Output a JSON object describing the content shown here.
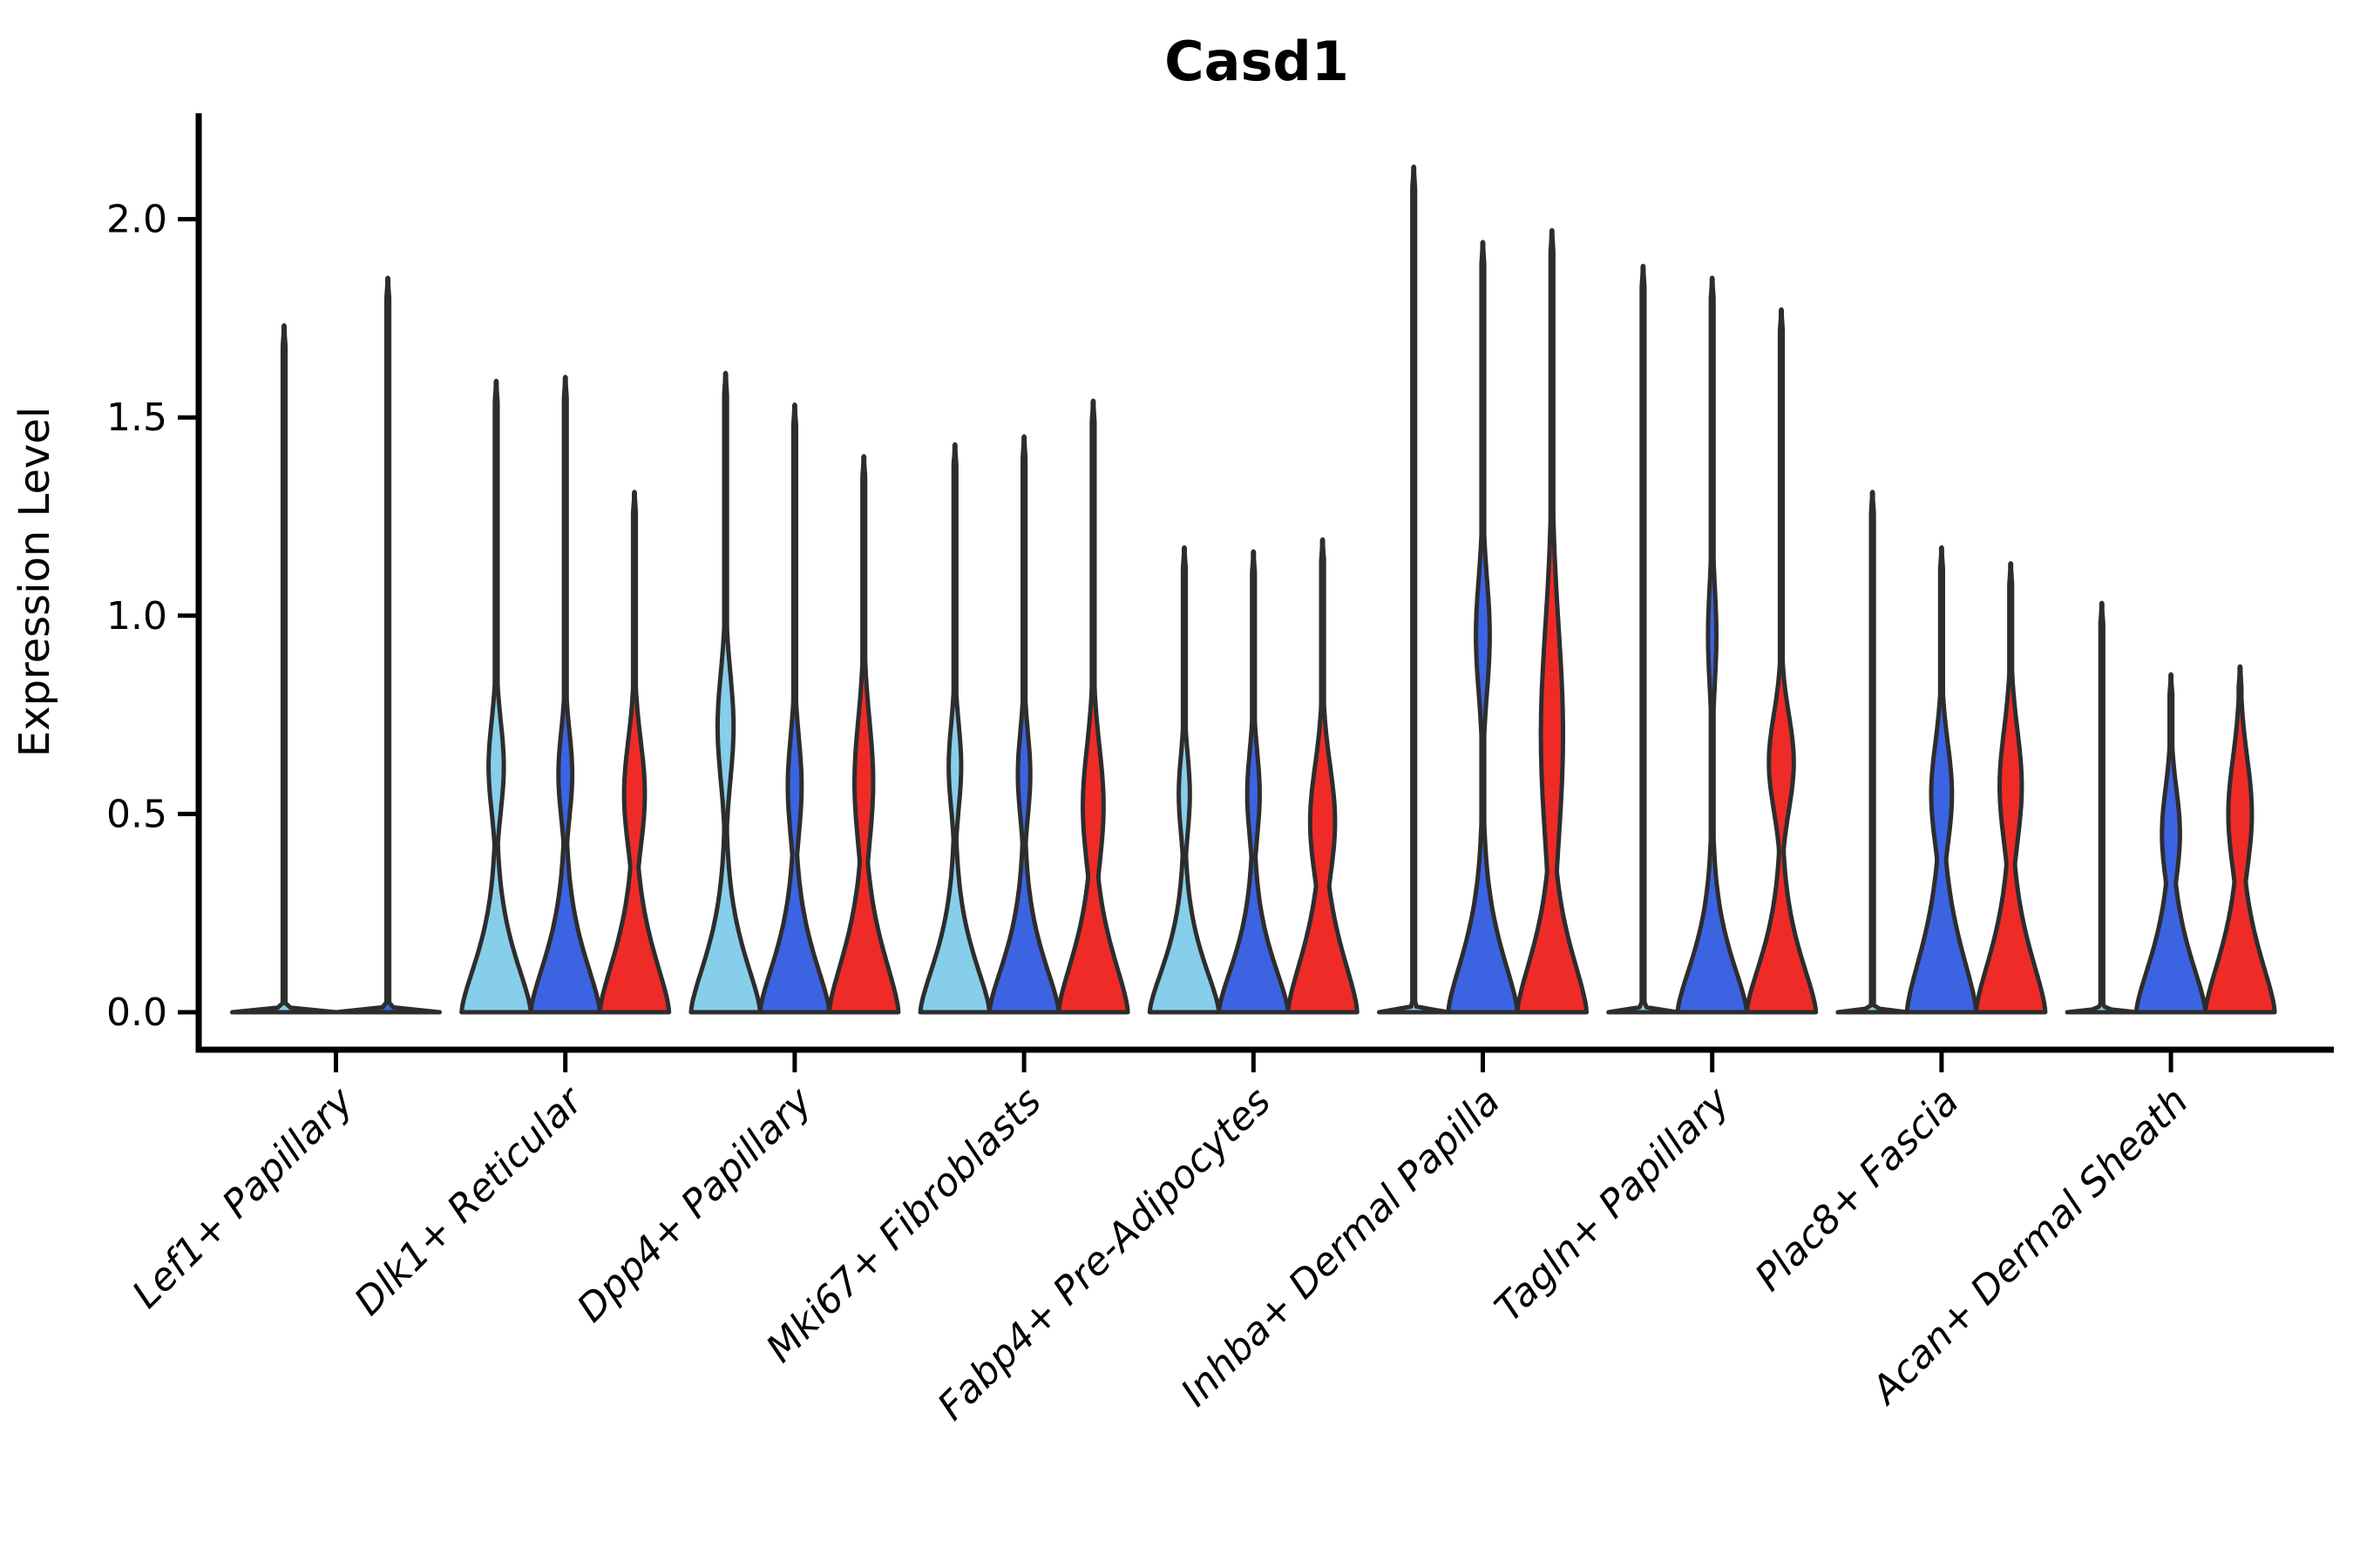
{
  "chart_data": {
    "type": "violin",
    "title": "Casd1",
    "ylabel": "Expression Level",
    "xlabel": "",
    "ylim": [
      0,
      2.27
    ],
    "grid": false,
    "legend": "none",
    "ytick_values": [
      0,
      0.5,
      1.0,
      1.5,
      2.0
    ],
    "ytick_labels": [
      "0.0",
      "0.5",
      "1.0",
      "1.5",
      "2.0"
    ],
    "palette": {
      "skyblue": "#87CEEB",
      "blue": "#3C63E2",
      "red": "#EF2B28",
      "edge": "#2D2D2D",
      "axis": "#000000"
    },
    "categories": [
      "Lef1+ Papillary",
      "Dlk1+ Reticular",
      "Dpp4+ Papillary",
      "Mki67+ Fibroblasts",
      "Fabp4+ Pre-Adipocytes",
      "Inhba+ Dermal Papilla",
      "Tagln+ Papillary",
      "Plac8+ Fascia",
      "Acan+ Dermal Sheath"
    ],
    "groups": [
      {
        "category": "Lef1+ Papillary",
        "violins": [
          {
            "series": "skyblue",
            "max": 1.73,
            "spike_only": true,
            "base": 0.0055,
            "bulges": []
          },
          {
            "series": "blue",
            "max": 1.85,
            "spike_only": true,
            "base": 0.0055,
            "bulges": []
          }
        ]
      },
      {
        "category": "Dlk1+ Reticular",
        "violins": [
          {
            "series": "skyblue",
            "max": 1.59,
            "spike_only": false,
            "base": 0.32,
            "bulges": [
              {
                "a": 0.22,
                "c": 0.62,
                "s": 0.16
              }
            ]
          },
          {
            "series": "blue",
            "max": 1.6,
            "spike_only": false,
            "base": 0.33,
            "bulges": [
              {
                "a": 0.2,
                "c": 0.6,
                "s": 0.15
              }
            ]
          },
          {
            "series": "red",
            "max": 1.31,
            "spike_only": false,
            "base": 0.35,
            "bulges": [
              {
                "a": 0.3,
                "c": 0.55,
                "s": 0.19
              }
            ]
          }
        ]
      },
      {
        "category": "Dpp4+ Papillary",
        "violins": [
          {
            "series": "skyblue",
            "max": 1.61,
            "spike_only": false,
            "base": 0.33,
            "bulges": [
              {
                "a": 0.23,
                "c": 0.72,
                "s": 0.19
              }
            ]
          },
          {
            "series": "blue",
            "max": 1.53,
            "spike_only": false,
            "base": 0.33,
            "bulges": [
              {
                "a": 0.2,
                "c": 0.57,
                "s": 0.17
              }
            ]
          },
          {
            "series": "red",
            "max": 1.4,
            "spike_only": false,
            "base": 0.36,
            "bulges": [
              {
                "a": 0.27,
                "c": 0.58,
                "s": 0.22
              }
            ]
          }
        ]
      },
      {
        "category": "Mki67+ Fibroblasts",
        "violins": [
          {
            "series": "skyblue",
            "max": 1.43,
            "spike_only": false,
            "base": 0.32,
            "bulges": [
              {
                "a": 0.18,
                "c": 0.62,
                "s": 0.15
              }
            ]
          },
          {
            "series": "blue",
            "max": 1.45,
            "spike_only": false,
            "base": 0.32,
            "bulges": [
              {
                "a": 0.18,
                "c": 0.6,
                "s": 0.15
              }
            ]
          },
          {
            "series": "red",
            "max": 1.54,
            "spike_only": false,
            "base": 0.35,
            "bulges": [
              {
                "a": 0.3,
                "c": 0.52,
                "s": 0.21
              }
            ]
          }
        ]
      },
      {
        "category": "Fabp4+ Pre-Adipocytes",
        "violins": [
          {
            "series": "skyblue",
            "max": 1.17,
            "spike_only": false,
            "base": 0.3,
            "bulges": [
              {
                "a": 0.16,
                "c": 0.55,
                "s": 0.14
              }
            ]
          },
          {
            "series": "blue",
            "max": 1.16,
            "spike_only": false,
            "base": 0.31,
            "bulges": [
              {
                "a": 0.18,
                "c": 0.55,
                "s": 0.15
              }
            ]
          },
          {
            "series": "red",
            "max": 1.19,
            "spike_only": false,
            "base": 0.36,
            "bulges": [
              {
                "a": 0.36,
                "c": 0.48,
                "s": 0.2
              }
            ]
          }
        ]
      },
      {
        "category": "Inhba+ Dermal Papilla",
        "violins": [
          {
            "series": "skyblue",
            "max": 2.13,
            "spike_only": true,
            "base": 0.0055,
            "bulges": []
          },
          {
            "series": "blue",
            "max": 1.94,
            "spike_only": false,
            "base": 0.35,
            "bulges": [
              {
                "a": 0.2,
                "c": 0.95,
                "s": 0.2
              }
            ]
          },
          {
            "series": "red",
            "max": 1.97,
            "spike_only": false,
            "base": 0.36,
            "bulges": [
              {
                "a": 0.32,
                "c": 0.7,
                "s": 0.38
              }
            ]
          }
        ]
      },
      {
        "category": "Tagln+ Papillary",
        "violins": [
          {
            "series": "skyblue",
            "max": 1.88,
            "spike_only": true,
            "base": 0.0055,
            "bulges": []
          },
          {
            "series": "blue",
            "max": 1.85,
            "spike_only": false,
            "base": 0.32,
            "bulges": [
              {
                "a": 0.12,
                "c": 0.95,
                "s": 0.18
              }
            ]
          },
          {
            "series": "red",
            "max": 1.77,
            "spike_only": false,
            "base": 0.33,
            "bulges": [
              {
                "a": 0.36,
                "c": 0.63,
                "s": 0.17
              }
            ]
          }
        ]
      },
      {
        "category": "Plac8+ Fascia",
        "violins": [
          {
            "series": "skyblue",
            "max": 1.31,
            "spike_only": true,
            "base": 0.0055,
            "bulges": []
          },
          {
            "series": "blue",
            "max": 1.17,
            "spike_only": false,
            "base": 0.38,
            "bulges": [
              {
                "a": 0.3,
                "c": 0.55,
                "s": 0.18
              }
            ]
          },
          {
            "series": "red",
            "max": 1.13,
            "spike_only": false,
            "base": 0.36,
            "bulges": [
              {
                "a": 0.32,
                "c": 0.57,
                "s": 0.2
              }
            ]
          }
        ]
      },
      {
        "category": "Acan+ Dermal Sheath",
        "violins": [
          {
            "series": "skyblue",
            "max": 1.03,
            "spike_only": true,
            "base": 0.0055,
            "bulges": []
          },
          {
            "series": "blue",
            "max": 0.85,
            "spike_only": false,
            "base": 0.33,
            "bulges": [
              {
                "a": 0.26,
                "c": 0.45,
                "s": 0.16
              }
            ]
          },
          {
            "series": "red",
            "max": 0.87,
            "spike_only": false,
            "base": 0.35,
            "bulges": [
              {
                "a": 0.34,
                "c": 0.5,
                "s": 0.2
              }
            ]
          }
        ]
      }
    ]
  }
}
